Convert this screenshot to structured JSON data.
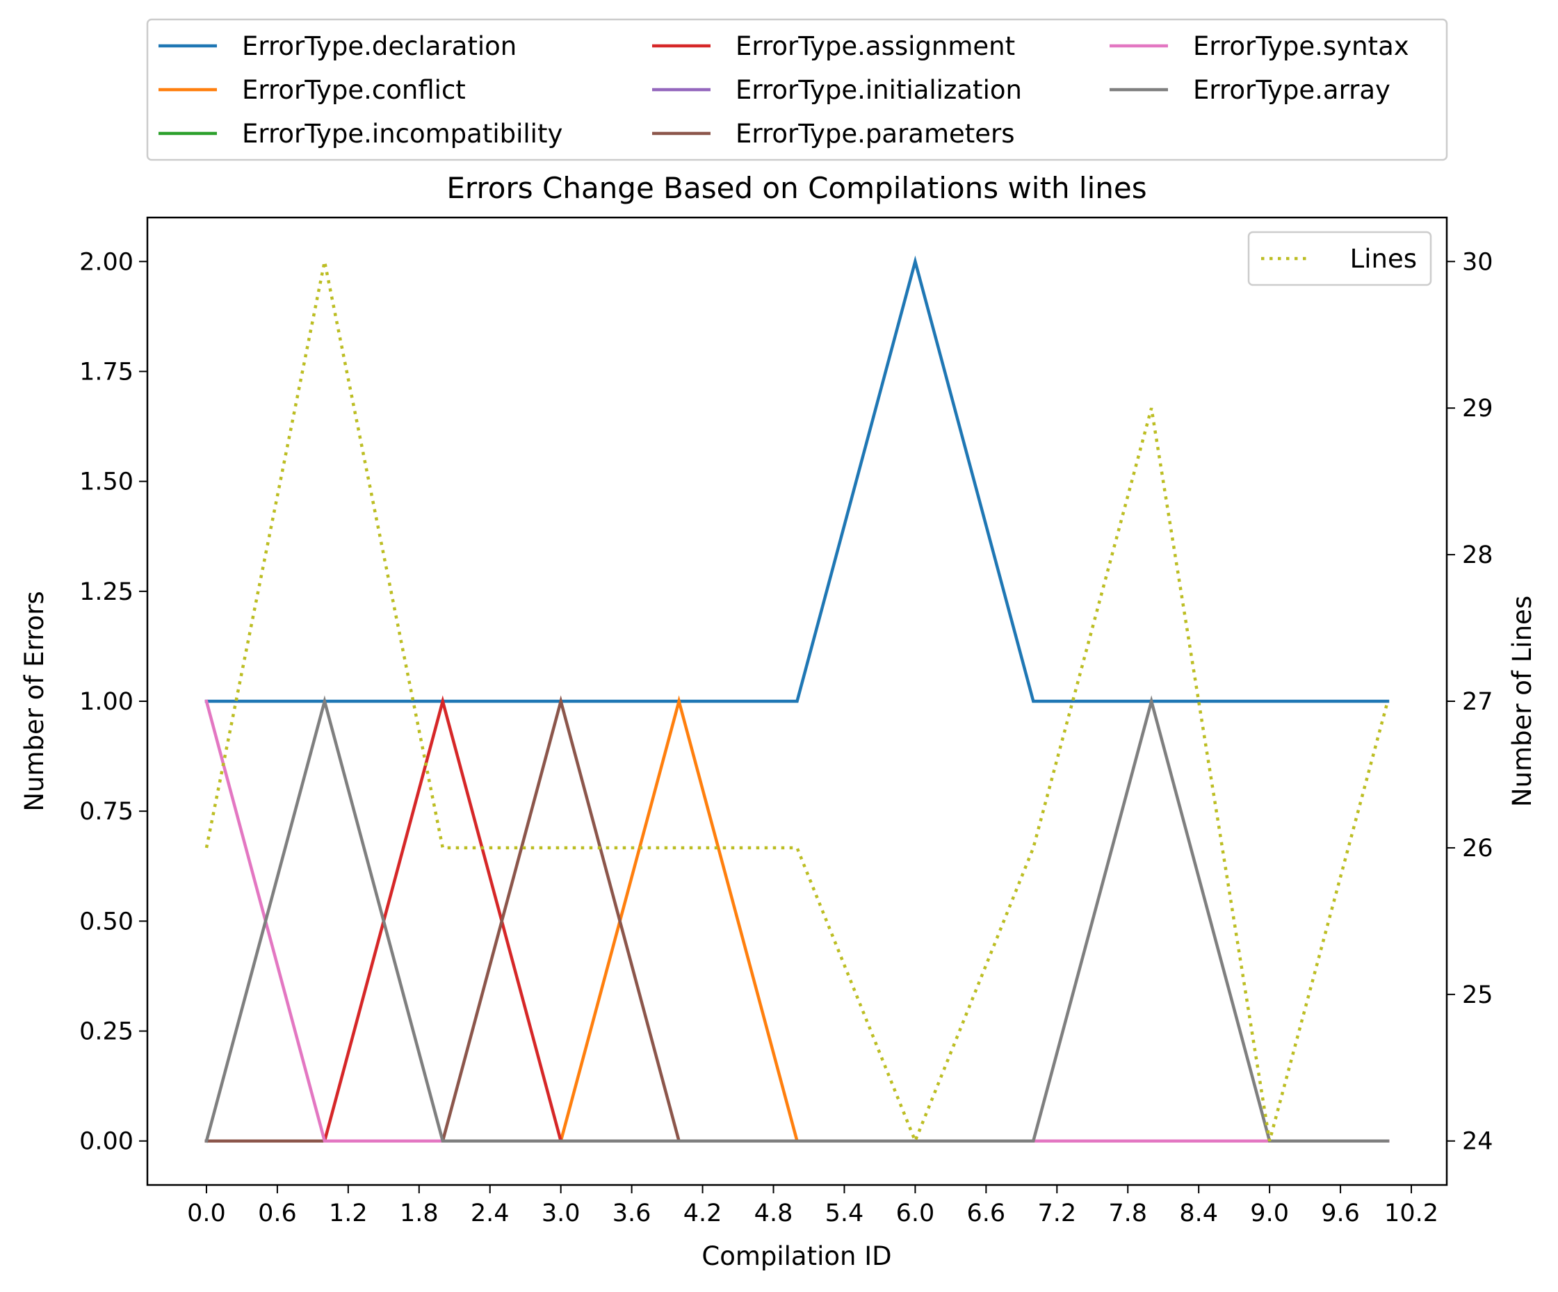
{
  "chart_data": {
    "type": "line",
    "title": "Errors Change Based on Compilations with lines",
    "xlabel": "Compilation ID",
    "ylabel": "Number of Errors",
    "y2label": "Number of Lines",
    "x": [
      0,
      1,
      2,
      3,
      4,
      5,
      6,
      7,
      8,
      9,
      10
    ],
    "xlim": [
      -0.5,
      10.5
    ],
    "ylim": [
      -0.1,
      2.1
    ],
    "y2lim": [
      23.7,
      30.3
    ],
    "x_ticks": [
      0.0,
      0.6,
      1.2,
      1.8,
      2.4,
      3.0,
      3.6,
      4.2,
      4.8,
      5.4,
      6.0,
      6.6,
      7.2,
      7.8,
      8.4,
      9.0,
      9.6,
      10.2
    ],
    "x_tick_labels": [
      "0.0",
      "0.6",
      "1.2",
      "1.8",
      "2.4",
      "3.0",
      "3.6",
      "4.2",
      "4.8",
      "5.4",
      "6.0",
      "6.6",
      "7.2",
      "7.8",
      "8.4",
      "9.0",
      "9.6",
      "10.2"
    ],
    "y_ticks": [
      0.0,
      0.25,
      0.5,
      0.75,
      1.0,
      1.25,
      1.5,
      1.75,
      2.0
    ],
    "y_tick_labels": [
      "0.00",
      "0.25",
      "0.50",
      "0.75",
      "1.00",
      "1.25",
      "1.50",
      "1.75",
      "2.00"
    ],
    "y2_ticks": [
      24,
      25,
      26,
      27,
      28,
      29,
      30
    ],
    "y2_tick_labels": [
      "24",
      "25",
      "26",
      "27",
      "28",
      "29",
      "30"
    ],
    "series": [
      {
        "name": "ErrorType.declaration",
        "color": "#1f77b4",
        "values": [
          1,
          1,
          1,
          1,
          1,
          1,
          2,
          1,
          1,
          1,
          1
        ]
      },
      {
        "name": "ErrorType.conflict",
        "color": "#ff7f0e",
        "values": [
          0,
          0,
          0,
          0,
          1,
          0,
          0,
          0,
          0,
          0,
          0
        ]
      },
      {
        "name": "ErrorType.incompatibility",
        "color": "#2ca02c",
        "values": [
          0,
          0,
          0,
          0,
          0,
          0,
          0,
          0,
          0,
          0,
          0
        ]
      },
      {
        "name": "ErrorType.assignment",
        "color": "#d62728",
        "values": [
          0,
          0,
          1,
          0,
          0,
          0,
          0,
          0,
          0,
          0,
          0
        ]
      },
      {
        "name": "ErrorType.initialization",
        "color": "#9467bd",
        "values": [
          0,
          0,
          0,
          0,
          0,
          0,
          0,
          0,
          0,
          0,
          0
        ]
      },
      {
        "name": "ErrorType.parameters",
        "color": "#8c564b",
        "values": [
          0,
          0,
          0,
          1,
          0,
          0,
          0,
          0,
          0,
          0,
          0
        ]
      },
      {
        "name": "ErrorType.syntax",
        "color": "#e377c2",
        "values": [
          1,
          0,
          0,
          0,
          0,
          0,
          0,
          0,
          0,
          0,
          0
        ]
      },
      {
        "name": "ErrorType.array",
        "color": "#7f7f7f",
        "values": [
          0,
          1,
          0,
          0,
          0,
          0,
          0,
          0,
          1,
          0,
          0
        ]
      }
    ],
    "lines_series": {
      "name": "Lines",
      "color": "#bcbd22",
      "style": "dotted",
      "axis": "right",
      "values": [
        26,
        30,
        26,
        26,
        26,
        26,
        24,
        26,
        29,
        24,
        27
      ]
    },
    "legend_position": "above plot, three columns",
    "legend2_position": "top-right",
    "grid": false
  }
}
